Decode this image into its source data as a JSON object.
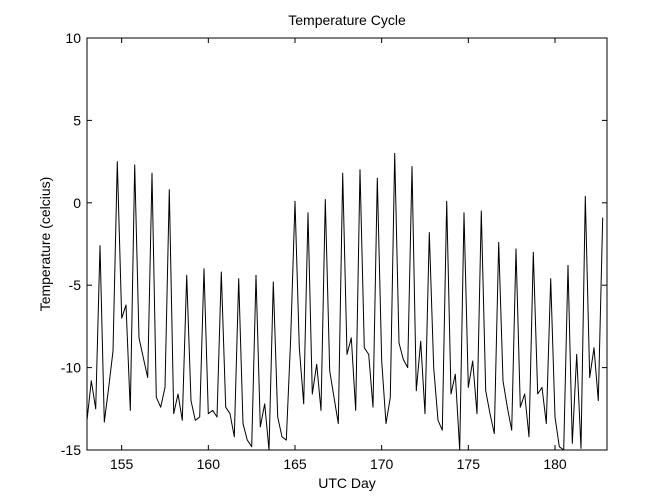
{
  "chart_data": {
    "type": "line",
    "title": "Temperature Cycle",
    "xlabel": "UTC Day",
    "ylabel": "Temperature (celcius)",
    "xlim": [
      153,
      183
    ],
    "ylim": [
      -15,
      10
    ],
    "xticks": [
      155,
      160,
      165,
      170,
      175,
      180
    ],
    "yticks": [
      -15,
      -10,
      -5,
      0,
      5,
      10
    ],
    "grid": false,
    "line_color": "#000000",
    "series": [
      {
        "x": [
          153.0,
          153.25,
          153.5,
          153.75,
          154.0,
          154.25,
          154.5,
          154.75,
          155.0,
          155.25,
          155.5,
          155.75,
          156.0,
          156.25,
          156.5,
          156.75,
          157.0,
          157.25,
          157.5,
          157.75,
          158.0,
          158.25,
          158.5,
          158.75,
          159.0,
          159.25,
          159.5,
          159.75,
          160.0,
          160.25,
          160.5,
          160.75,
          161.0,
          161.25,
          161.5,
          161.75,
          162.0,
          162.25,
          162.5,
          162.75,
          163.0,
          163.25,
          163.5,
          163.75,
          164.0,
          164.25,
          164.5,
          164.75,
          165.0,
          165.25,
          165.5,
          165.75,
          166.0,
          166.25,
          166.5,
          166.75,
          167.0,
          167.25,
          167.5,
          167.75,
          168.0,
          168.25,
          168.5,
          168.75,
          169.0,
          169.25,
          169.5,
          169.75,
          170.0,
          170.25,
          170.5,
          170.75,
          171.0,
          171.25,
          171.5,
          171.75,
          172.0,
          172.25,
          172.5,
          172.75,
          173.0,
          173.25,
          173.5,
          173.75,
          174.0,
          174.25,
          174.5,
          174.75,
          175.0,
          175.25,
          175.5,
          175.75,
          176.0,
          176.25,
          176.5,
          176.75,
          177.0,
          177.25,
          177.5,
          177.75,
          178.0,
          178.25,
          178.5,
          178.75,
          179.0,
          179.25,
          179.5,
          179.75,
          180.0,
          180.25,
          180.5,
          180.75,
          181.0,
          181.25,
          181.5,
          181.75,
          182.0,
          182.25,
          182.5,
          182.75
        ],
        "y": [
          -13.2,
          -10.8,
          -12.5,
          -2.6,
          -13.3,
          -11.2,
          -9.0,
          2.5,
          -7.0,
          -6.2,
          -12.6,
          2.3,
          -8.2,
          -9.4,
          -10.6,
          1.8,
          -11.8,
          -12.4,
          -11.2,
          0.8,
          -12.8,
          -11.6,
          -13.2,
          -4.4,
          -12.0,
          -13.2,
          -13.0,
          -4.0,
          -12.8,
          -12.6,
          -13.0,
          -4.2,
          -12.4,
          -12.8,
          -14.2,
          -4.6,
          -13.4,
          -14.4,
          -14.8,
          -4.4,
          -13.6,
          -12.2,
          -15.0,
          -4.8,
          -13.0,
          -14.2,
          -14.4,
          -8.2,
          0.1,
          -8.8,
          -12.2,
          -0.6,
          -11.6,
          -9.8,
          -12.6,
          0.2,
          -10.2,
          -11.8,
          -13.4,
          1.8,
          -9.2,
          -8.2,
          -12.6,
          2.0,
          -8.8,
          -9.2,
          -12.4,
          1.5,
          -9.6,
          -13.4,
          -11.8,
          3.0,
          -8.5,
          -9.5,
          -10.0,
          2.2,
          -11.4,
          -8.4,
          -12.8,
          -1.8,
          -10.0,
          -13.2,
          -13.8,
          0.1,
          -11.6,
          -10.4,
          -15.0,
          -0.6,
          -11.2,
          -9.6,
          -12.8,
          -0.5,
          -11.4,
          -12.8,
          -14.0,
          -2.4,
          -10.8,
          -12.4,
          -13.8,
          -2.8,
          -12.4,
          -11.6,
          -14.2,
          -3.0,
          -11.6,
          -11.2,
          -13.4,
          -4.6,
          -13.0,
          -14.8,
          -15.0,
          -3.8,
          -14.6,
          -9.2,
          -14.9,
          0.4,
          -10.6,
          -8.8,
          -12.0,
          -0.9
        ]
      }
    ]
  }
}
